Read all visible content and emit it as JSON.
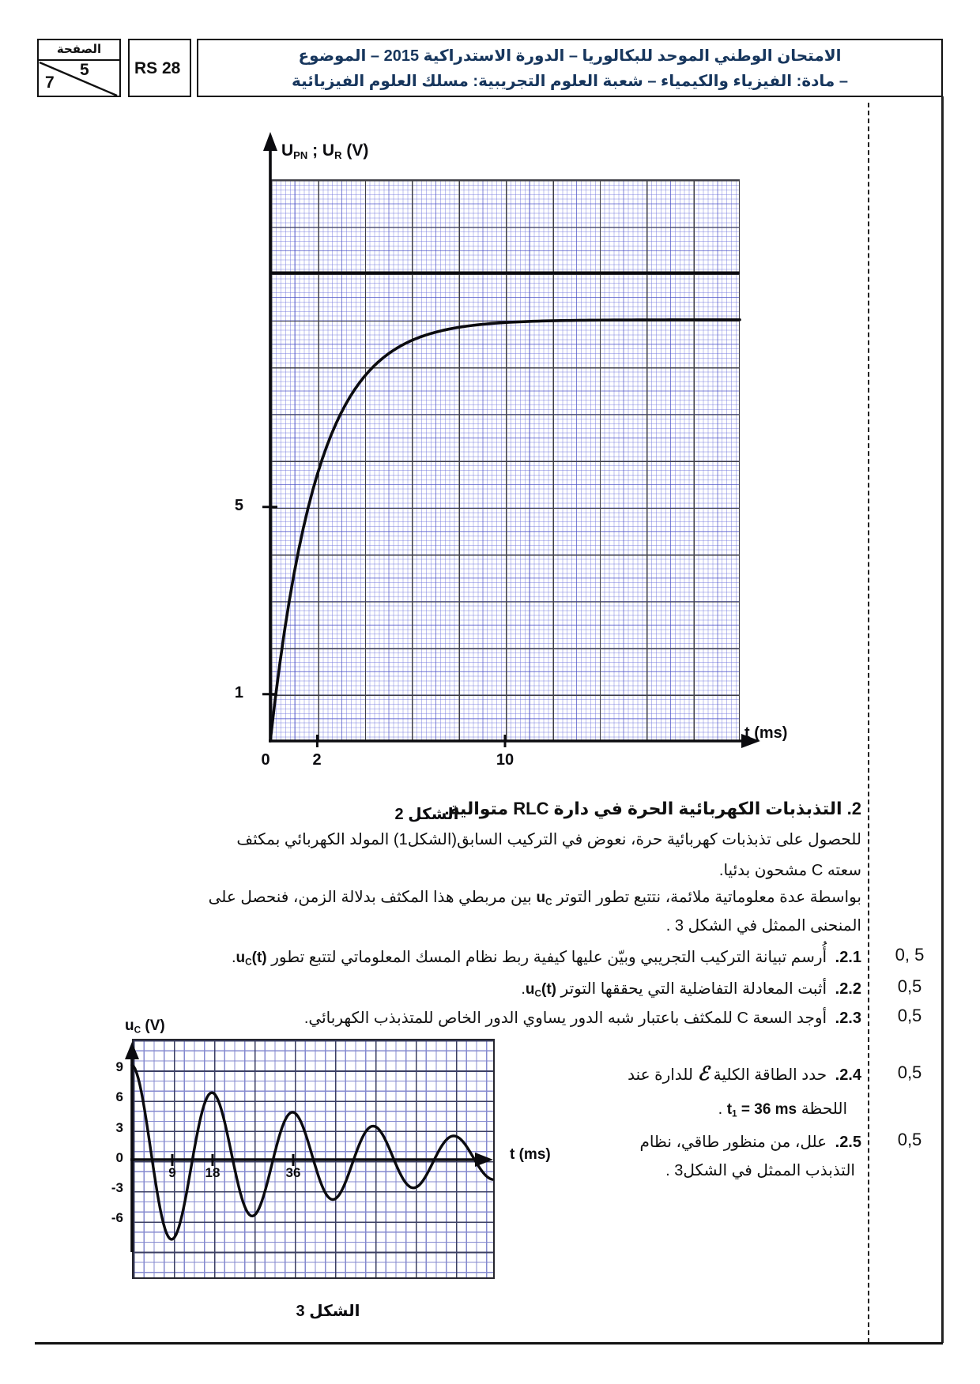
{
  "header": {
    "page_box": {
      "label": "الصفحة",
      "current": "5",
      "total": "7"
    },
    "code": "RS 28",
    "title_line1": "الامتحان الوطني الموحد للبكالوريا – الدورة الاستدراكية 2015 – الموضوع",
    "title_line2": "– مادة: الفيزياء والكيمياء – شعبة العلوم التجريبية: مسلك العلوم الفيزيائية"
  },
  "section": {
    "title": "2. التذبذبات الكهربائية الحرة في دارة RLC متوالية.",
    "p1": "للحصول على تذبذبات كهربائية حرة، نعوض في التركيب السابق(الشكل1) المولد الكهربائي بمكثف",
    "p2": "سعته C مشحون بدئيا.",
    "p3a": "بواسطة عدة معلوماتية ملائمة، نتتبع تطور التوتر",
    "p3_uc": "u",
    "p3_uc_sub": "C",
    "p3b": "بين مربطي هذا المكثف بدلالة الزمن، فنحصل على",
    "p4": "المنحنى الممثل في الشكل 3 ."
  },
  "questions": [
    {
      "num": "2.1.",
      "body": "أُرسم تبيانة التركيب التجريبي وبيّن عليها كيفية ربط نظام المسك المعلوماتي لتتبع تطور",
      "uc": "u",
      "uc_sub": "C",
      "uc_args": "(t)",
      "tail": "."
    },
    {
      "num": "2.2.",
      "body": "أثبت المعادلة التفاضلية التي يحققها التوتر",
      "uc": "u",
      "uc_sub": "C",
      "uc_args": "(t)",
      "tail": "."
    },
    {
      "num": "2.3.",
      "body": "أوجد السعة C للمكثف باعتبار شبه الدور يساوي الدور الخاص للمتذبذب الكهربائي."
    },
    {
      "num": "2.4.",
      "l1a": "حدد الطاقة الكلية",
      "sym": "ℰ",
      "l1b": "للدارة عند",
      "l2pre": "اللحظة",
      "t": "t",
      "t_sub": "1",
      "t_eq": " = 36 ms",
      "tail": " ."
    },
    {
      "num": "2.5.",
      "l1": "علل، من منظور طاقي، نظام",
      "l2": "التذبذب الممثل في الشكل3 ."
    }
  ],
  "marks": [
    "0, 5",
    "0,5",
    "0,5",
    "0,5",
    "0,5"
  ],
  "figures": {
    "fig2": {
      "ylabel_parts": [
        "U",
        "PN",
        " ; U",
        "R",
        " (V)"
      ],
      "xlabel": "t (ms)"
    },
    "fig3": {
      "ylabel_parts": [
        "u",
        "C",
        " (V)"
      ],
      "xlabel": "t (ms)"
    }
  },
  "chart_data": [
    {
      "id": "figure2",
      "type": "line",
      "title": "UPN ; UR (V) versus t (ms)",
      "xlabel": "t (ms)",
      "ylabel": "UPN ; UR (V)",
      "xlim": [
        0,
        20
      ],
      "ylim": [
        0,
        12
      ],
      "grid": "millimeter paper, bold cell = 2 ms × 1 V",
      "x_ticks": [
        {
          "t": 0,
          "label": "0"
        },
        {
          "t": 2,
          "label": "2"
        },
        {
          "t": 10,
          "label": "10"
        }
      ],
      "y_ticks": [
        {
          "v": 5,
          "label": "5"
        },
        {
          "v": 1,
          "label": "1"
        }
      ],
      "series": [
        {
          "name": "UPN",
          "shape": "constant",
          "value": 10,
          "unit": "V"
        },
        {
          "name": "UR",
          "shape": "exponential_rise",
          "asymptote": 9,
          "tau_ms": 2,
          "formula": "uR(t) = 9·(1 − e^(−t/2ms)) V",
          "read_points": [
            [
              0,
              0
            ],
            [
              2,
              5.7
            ],
            [
              4,
              7.8
            ],
            [
              6,
              8.5
            ],
            [
              10,
              8.9
            ],
            [
              20,
              9
            ]
          ]
        }
      ],
      "caption": "الشكل 2"
    },
    {
      "id": "figure3",
      "type": "line",
      "title": "uC (V) versus t (ms) — damped free oscillations",
      "xlabel": "t (ms)",
      "ylabel": "uC (V)",
      "xlim": [
        0,
        81
      ],
      "ylim": [
        -12,
        12
      ],
      "grid": "blue grid, dark line every 9 ms × 3 V",
      "x_ticks": [
        {
          "t": 9,
          "label": "9"
        },
        {
          "t": 18,
          "label": "18"
        },
        {
          "t": 36,
          "label": "36"
        }
      ],
      "y_ticks": [
        {
          "v": 9,
          "label": "9"
        },
        {
          "v": 6,
          "label": "6"
        },
        {
          "v": 3,
          "label": "3"
        },
        {
          "v": 0,
          "label": "0"
        },
        {
          "v": -3,
          "label": "-3"
        },
        {
          "v": -6,
          "label": "-6"
        }
      ],
      "series": [
        {
          "name": "uC",
          "shape": "damped_cosine",
          "amplitude": 9.4,
          "tau_ms": 52,
          "pseudo_period_ms": 18,
          "formula": "uC(t) ≈ 9.4·e^(−t/52ms)·cos(2πt/18ms) V",
          "peaks": [
            [
              0,
              9.4
            ],
            [
              18,
              6.6
            ],
            [
              36,
              4.7
            ],
            [
              54,
              3.3
            ],
            [
              72,
              2.4
            ]
          ],
          "troughs": [
            [
              9,
              -7.9
            ],
            [
              27,
              -5.6
            ],
            [
              45,
              -4.0
            ],
            [
              63,
              -2.8
            ]
          ]
        }
      ],
      "caption": "الشكل 3"
    }
  ]
}
